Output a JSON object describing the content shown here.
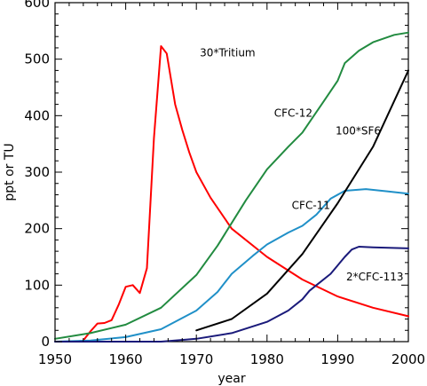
{
  "chart_data": {
    "type": "line",
    "title": "",
    "xlabel": "year",
    "ylabel": "ppt or TU",
    "xlim": [
      1950,
      2000
    ],
    "ylim": [
      0,
      600
    ],
    "xticks": [
      1950,
      1960,
      1970,
      1980,
      1990,
      2000
    ],
    "yticks": [
      0,
      100,
      200,
      300,
      400,
      500,
      600
    ],
    "grid": false,
    "legend": "none (inline series labels)",
    "series": [
      {
        "name": "30*Tritium",
        "color": "#ff0000",
        "x": [
          1950,
          1952,
          1953,
          1954,
          1955,
          1956,
          1957,
          1958,
          1959,
          1960,
          1961,
          1962,
          1963,
          1964,
          1965,
          1965.8,
          1967,
          1968,
          1969,
          1970,
          1972,
          1975,
          1980,
          1985,
          1990,
          1995,
          2000
        ],
        "y": [
          0,
          0,
          0,
          2,
          18,
          32,
          33,
          38,
          65,
          97,
          100,
          86,
          130,
          360,
          523,
          510,
          420,
          375,
          335,
          300,
          255,
          200,
          150,
          110,
          80,
          60,
          45
        ]
      },
      {
        "name": "CFC-12",
        "color": "#228b40",
        "x": [
          1950,
          1955,
          1960,
          1965,
          1970,
          1973,
          1975,
          1977,
          1980,
          1983,
          1985,
          1988,
          1990,
          1991,
          1993,
          1995,
          1998,
          2000
        ],
        "y": [
          5,
          15,
          30,
          60,
          118,
          170,
          210,
          250,
          305,
          345,
          370,
          425,
          462,
          493,
          515,
          530,
          543,
          547
        ]
      },
      {
        "name": "CFC-11",
        "color": "#2090c8",
        "x": [
          1950,
          1955,
          1960,
          1965,
          1970,
          1973,
          1975,
          1978,
          1980,
          1983,
          1985,
          1987,
          1989,
          1991,
          1994,
          1997,
          2000
        ],
        "y": [
          0,
          2,
          8,
          22,
          55,
          88,
          120,
          152,
          172,
          193,
          205,
          225,
          253,
          267,
          270,
          266,
          262
        ]
      },
      {
        "name": "100*SF6",
        "color": "#000000",
        "x": [
          1970,
          1975,
          1980,
          1985,
          1990,
          1995,
          2000
        ],
        "y": [
          20,
          40,
          85,
          155,
          245,
          345,
          480
        ]
      },
      {
        "name": "2*CFC-113",
        "color": "#1a1a7a",
        "x": [
          1950,
          1960,
          1965,
          1970,
          1975,
          1980,
          1983,
          1985,
          1986,
          1987,
          1989,
          1991,
          1992,
          1993,
          1995,
          2000
        ],
        "y": [
          0,
          0,
          0,
          5,
          15,
          35,
          55,
          75,
          90,
          100,
          120,
          150,
          163,
          168,
          167,
          165
        ]
      }
    ],
    "annotations": [
      {
        "text": "30*Tritium",
        "x": 1970.5,
        "y": 505,
        "color": "#000000"
      },
      {
        "text": "CFC-12",
        "x": 1981,
        "y": 398,
        "color": "#000000"
      },
      {
        "text": "100*SF6",
        "x": 1989.7,
        "y": 367,
        "color": "#000000"
      },
      {
        "text": "CFC-11",
        "x": 1983.5,
        "y": 235,
        "color": "#000000"
      },
      {
        "text": "2*CFC-113",
        "x": 1991.2,
        "y": 108,
        "color": "#000000"
      }
    ]
  }
}
